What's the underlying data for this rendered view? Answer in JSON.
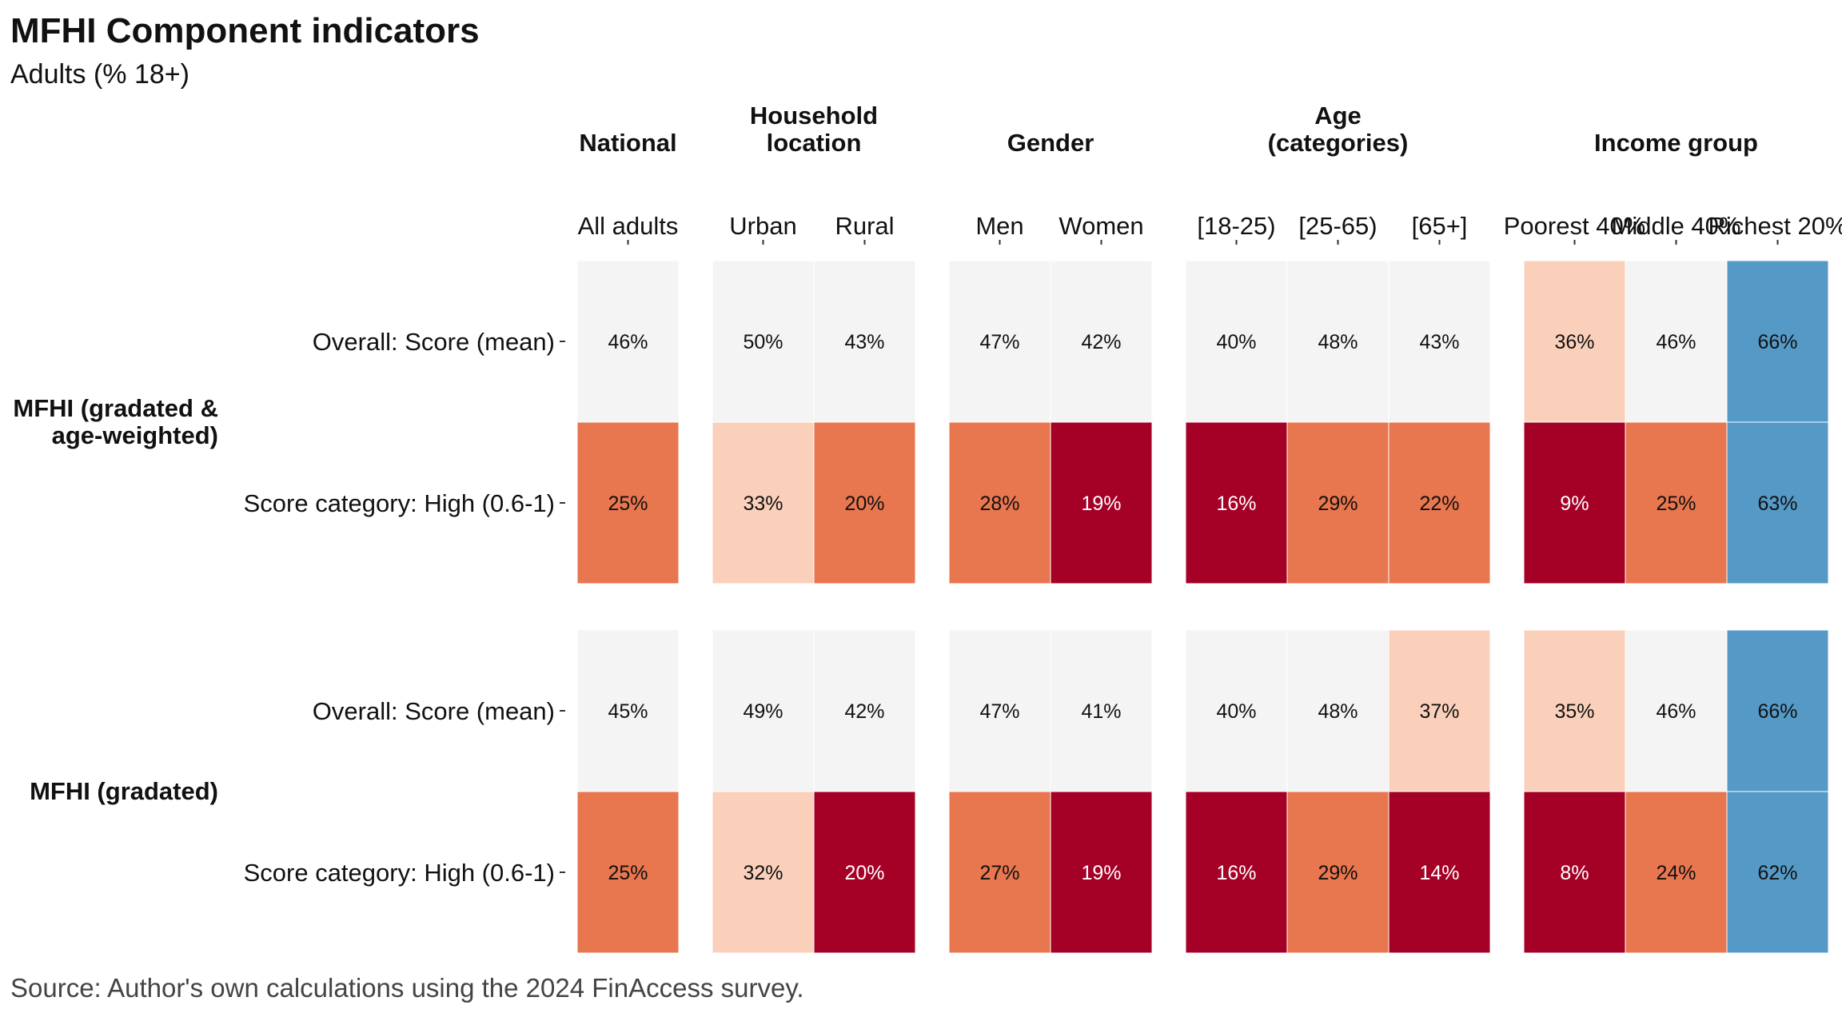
{
  "title": "MFHI Component indicators",
  "subtitle": "Adults (% 18+)",
  "caption": "Source: Author's own calculations using the 2024 FinAccess survey.",
  "colors": {
    "very_low": "#a50026",
    "low": "#e8764f",
    "mid_low": "#fbd0bb",
    "neutral": "#f4f4f4",
    "high": "#5599c6"
  },
  "chart_data": {
    "type": "heatmap",
    "facet_columns": [
      {
        "label": "National",
        "categories": [
          "All adults"
        ]
      },
      {
        "label": "Household location",
        "categories": [
          "Urban",
          "Rural"
        ]
      },
      {
        "label": "Gender",
        "categories": [
          "Men",
          "Women"
        ]
      },
      {
        "label": "Age (categories)",
        "categories": [
          "[18-25)",
          "[25-65)",
          "[65+]"
        ]
      },
      {
        "label": "Income group",
        "categories": [
          "Poorest 40%",
          "Middle 40%",
          "Richest 20%"
        ]
      }
    ],
    "facet_rows": [
      {
        "label": "MFHI (gradated & age-weighted)",
        "rows": [
          {
            "label": "Overall: Score (mean)",
            "values": [
              46,
              50,
              43,
              47,
              42,
              40,
              48,
              43,
              36,
              46,
              66
            ],
            "color_class": [
              "neutral",
              "neutral",
              "neutral",
              "neutral",
              "neutral",
              "neutral",
              "neutral",
              "neutral",
              "mid_low",
              "neutral",
              "high"
            ]
          },
          {
            "label": "Score category: High (0.6-1)",
            "values": [
              25,
              33,
              20,
              28,
              19,
              16,
              29,
              22,
              9,
              25,
              63
            ],
            "color_class": [
              "low",
              "mid_low",
              "low",
              "low",
              "very_low",
              "very_low",
              "low",
              "low",
              "very_low",
              "low",
              "high"
            ]
          }
        ]
      },
      {
        "label": "MFHI (gradated)",
        "rows": [
          {
            "label": "Overall: Score (mean)",
            "values": [
              45,
              49,
              42,
              47,
              41,
              40,
              48,
              37,
              35,
              46,
              66
            ],
            "color_class": [
              "neutral",
              "neutral",
              "neutral",
              "neutral",
              "neutral",
              "neutral",
              "neutral",
              "mid_low",
              "mid_low",
              "neutral",
              "high"
            ]
          },
          {
            "label": "Score category: High (0.6-1)",
            "values": [
              25,
              32,
              20,
              27,
              19,
              16,
              29,
              14,
              8,
              24,
              62
            ],
            "color_class": [
              "low",
              "mid_low",
              "very_low",
              "low",
              "very_low",
              "very_low",
              "low",
              "very_low",
              "very_low",
              "low",
              "high"
            ]
          }
        ]
      }
    ],
    "value_suffix": "%"
  }
}
